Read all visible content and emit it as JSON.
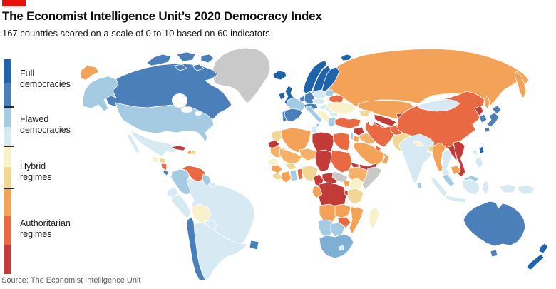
{
  "brand": {
    "accent_color": "#e3120b"
  },
  "header": {
    "title": "The Economist Intelligence Unit’s 2020 Democracy Index",
    "subtitle": "167 countries scored on a scale of 0 to 10 based on 60 indicators"
  },
  "legend": {
    "categories": [
      {
        "label": "Full\ndemocracies"
      },
      {
        "label": "Flawed\ndemocracies"
      },
      {
        "label": "Hybrid\nregimes"
      },
      {
        "label": "Authoritarian\nregimes"
      }
    ]
  },
  "source": "Source: The Economist Intelligence Unit",
  "chart_data": {
    "type": "choropleth",
    "title": "The Economist Intelligence Unit’s 2020 Democracy Index",
    "scale_note": "scored 0 to 10",
    "legend_position": "left",
    "palette": {
      "full_high": "#1f63ab",
      "full_mid": "#4a7fb9",
      "flawed_high": "#a5cbe3",
      "flawed_mid": "#7fb0d4",
      "flawed_low": "#d7e9f3",
      "hybrid_high": "#f8f1ca",
      "hybrid_low": "#f0d795",
      "auth_light": "#f6b168",
      "auth_high": "#f4a257",
      "auth_mid": "#e86942",
      "auth_low": "#c23b38",
      "no_data": "#c9c9c9",
      "sea": "#ffffff"
    },
    "legend_segments": [
      "full_high",
      "full_mid",
      "flawed_high",
      "flawed_low",
      "hybrid_high",
      "hybrid_low",
      "auth_high",
      "auth_mid",
      "auth_low"
    ],
    "regions": [
      {
        "id": "greenland",
        "category": "no_data"
      },
      {
        "id": "canada",
        "category": "full_mid"
      },
      {
        "id": "canada-islands",
        "category": "full_mid"
      },
      {
        "id": "alaska",
        "category": "flawed_high"
      },
      {
        "id": "chukotka",
        "category": "auth_high"
      },
      {
        "id": "usa",
        "category": "flawed_high"
      },
      {
        "id": "mexico",
        "category": "flawed_low"
      },
      {
        "id": "guatemala",
        "category": "hybrid_high"
      },
      {
        "id": "honduras",
        "category": "hybrid_low"
      },
      {
        "id": "nicaragua",
        "category": "auth_mid"
      },
      {
        "id": "costa-rica",
        "category": "full_mid"
      },
      {
        "id": "panama",
        "category": "flawed_low"
      },
      {
        "id": "cuba",
        "category": "auth_low"
      },
      {
        "id": "haiti",
        "category": "auth_high"
      },
      {
        "id": "dominican-republic",
        "category": "hybrid_low"
      },
      {
        "id": "brazil",
        "category": "flawed_low"
      },
      {
        "id": "colombia",
        "category": "flawed_high"
      },
      {
        "id": "venezuela",
        "category": "auth_mid"
      },
      {
        "id": "guyana",
        "category": "flawed_high"
      },
      {
        "id": "suriname",
        "category": "flawed_low"
      },
      {
        "id": "ecuador",
        "category": "flawed_low"
      },
      {
        "id": "peru",
        "category": "flawed_low"
      },
      {
        "id": "bolivia",
        "category": "hybrid_high"
      },
      {
        "id": "paraguay",
        "category": "flawed_low"
      },
      {
        "id": "argentina",
        "category": "flawed_low"
      },
      {
        "id": "chile",
        "category": "full_mid"
      },
      {
        "id": "uruguay",
        "category": "full_mid"
      },
      {
        "id": "russia",
        "category": "auth_high"
      },
      {
        "id": "kamchatka",
        "category": "auth_high"
      },
      {
        "id": "sakhalin",
        "category": "auth_high"
      },
      {
        "id": "norway",
        "category": "full_high"
      },
      {
        "id": "sweden",
        "category": "full_high"
      },
      {
        "id": "finland",
        "category": "full_high"
      },
      {
        "id": "svalbard",
        "category": "full_high"
      },
      {
        "id": "iceland",
        "category": "full_high"
      },
      {
        "id": "denmark",
        "category": "full_high"
      },
      {
        "id": "baltics",
        "category": "flawed_high"
      },
      {
        "id": "ireland",
        "category": "full_high"
      },
      {
        "id": "uk",
        "category": "full_high"
      },
      {
        "id": "benelux",
        "category": "full_mid"
      },
      {
        "id": "germany",
        "category": "full_mid"
      },
      {
        "id": "france",
        "category": "flawed_high"
      },
      {
        "id": "switzerland-austria",
        "category": "full_mid"
      },
      {
        "id": "portugal",
        "category": "full_mid"
      },
      {
        "id": "spain",
        "category": "full_mid"
      },
      {
        "id": "italy",
        "category": "flawed_high"
      },
      {
        "id": "poland",
        "category": "flawed_low"
      },
      {
        "id": "czech-slovakia",
        "category": "flawed_low"
      },
      {
        "id": "hungary",
        "category": "flawed_low"
      },
      {
        "id": "romania",
        "category": "flawed_low"
      },
      {
        "id": "bulgaria",
        "category": "flawed_low"
      },
      {
        "id": "balkans",
        "category": "hybrid_high"
      },
      {
        "id": "greece",
        "category": "flawed_high"
      },
      {
        "id": "belarus",
        "category": "auth_mid"
      },
      {
        "id": "ukraine",
        "category": "hybrid_high"
      },
      {
        "id": "kazakhstan",
        "category": "auth_high"
      },
      {
        "id": "uzbekistan",
        "category": "auth_low"
      },
      {
        "id": "turkmenistan",
        "category": "auth_low"
      },
      {
        "id": "kyrgyzstan-tajikistan",
        "category": "auth_low"
      },
      {
        "id": "caucasus",
        "category": "hybrid_low"
      },
      {
        "id": "turkey",
        "category": "auth_mid"
      },
      {
        "id": "syria",
        "category": "auth_low"
      },
      {
        "id": "iraq",
        "category": "auth_light"
      },
      {
        "id": "israel",
        "category": "flawed_high"
      },
      {
        "id": "jordan",
        "category": "auth_high"
      },
      {
        "id": "saudi-arabia",
        "category": "auth_high"
      },
      {
        "id": "yemen",
        "category": "auth_low"
      },
      {
        "id": "oman",
        "category": "auth_high"
      },
      {
        "id": "gulf-states",
        "category": "auth_mid"
      },
      {
        "id": "iran",
        "category": "auth_mid"
      },
      {
        "id": "afghanistan",
        "category": "auth_mid"
      },
      {
        "id": "pakistan",
        "category": "hybrid_low"
      },
      {
        "id": "china",
        "category": "auth_mid"
      },
      {
        "id": "mongolia",
        "category": "flawed_low"
      },
      {
        "id": "india",
        "category": "flawed_low"
      },
      {
        "id": "nepal",
        "category": "hybrid_high"
      },
      {
        "id": "bangladesh",
        "category": "hybrid_low"
      },
      {
        "id": "sri-lanka",
        "category": "flawed_high"
      },
      {
        "id": "north-korea",
        "category": "auth_low"
      },
      {
        "id": "south-korea",
        "category": "full_mid"
      },
      {
        "id": "japan",
        "category": "full_mid"
      },
      {
        "id": "taiwan",
        "category": "full_high"
      },
      {
        "id": "myanmar",
        "category": "auth_high"
      },
      {
        "id": "thailand",
        "category": "flawed_low"
      },
      {
        "id": "laos",
        "category": "auth_low"
      },
      {
        "id": "vietnam",
        "category": "auth_low"
      },
      {
        "id": "cambodia",
        "category": "auth_high"
      },
      {
        "id": "malaysia",
        "category": "flawed_high"
      },
      {
        "id": "indonesia",
        "category": "flawed_low"
      },
      {
        "id": "philippines",
        "category": "flawed_low"
      },
      {
        "id": "papua-new-guinea",
        "category": "flawed_low"
      },
      {
        "id": "australia",
        "category": "full_mid"
      },
      {
        "id": "tasmania",
        "category": "full_mid"
      },
      {
        "id": "new-zealand",
        "category": "full_high"
      },
      {
        "id": "morocco",
        "category": "hybrid_low"
      },
      {
        "id": "western-sahara",
        "category": "auth_low"
      },
      {
        "id": "algeria",
        "category": "auth_high"
      },
      {
        "id": "tunisia",
        "category": "flawed_low"
      },
      {
        "id": "libya",
        "category": "auth_low"
      },
      {
        "id": "egypt",
        "category": "auth_mid"
      },
      {
        "id": "mauritania",
        "category": "auth_light"
      },
      {
        "id": "mali",
        "category": "auth_light"
      },
      {
        "id": "niger",
        "category": "auth_light"
      },
      {
        "id": "chad",
        "category": "auth_low"
      },
      {
        "id": "sudan",
        "category": "auth_mid"
      },
      {
        "id": "eritrea",
        "category": "auth_low"
      },
      {
        "id": "senegal",
        "category": "hybrid_high"
      },
      {
        "id": "guinea",
        "category": "auth_high"
      },
      {
        "id": "sierra-leone-liberia",
        "category": "hybrid_low"
      },
      {
        "id": "ivory-coast",
        "category": "auth_high"
      },
      {
        "id": "ghana",
        "category": "flawed_high"
      },
      {
        "id": "burkina-faso",
        "category": "hybrid_low"
      },
      {
        "id": "togo-benin",
        "category": "auth_mid"
      },
      {
        "id": "nigeria",
        "category": "hybrid_low"
      },
      {
        "id": "cameroon",
        "category": "auth_low"
      },
      {
        "id": "central-african-republic",
        "category": "auth_low"
      },
      {
        "id": "south-sudan",
        "category": "no_data"
      },
      {
        "id": "ethiopia",
        "category": "auth_light"
      },
      {
        "id": "somalia",
        "category": "no_data"
      },
      {
        "id": "uganda",
        "category": "auth_high"
      },
      {
        "id": "kenya",
        "category": "hybrid_high"
      },
      {
        "id": "drc",
        "category": "auth_low"
      },
      {
        "id": "congo-gabon",
        "category": "auth_high"
      },
      {
        "id": "rwanda-burundi",
        "category": "auth_low"
      },
      {
        "id": "tanzania",
        "category": "hybrid_low"
      },
      {
        "id": "angola",
        "category": "auth_high"
      },
      {
        "id": "zambia",
        "category": "auth_high"
      },
      {
        "id": "malawi",
        "category": "hybrid_low"
      },
      {
        "id": "mozambique",
        "category": "auth_high"
      },
      {
        "id": "zimbabwe",
        "category": "auth_mid"
      },
      {
        "id": "namibia",
        "category": "flawed_high"
      },
      {
        "id": "botswana",
        "category": "flawed_high"
      },
      {
        "id": "south-africa",
        "category": "flawed_mid"
      },
      {
        "id": "lesotho",
        "category": "flawed_low"
      },
      {
        "id": "madagascar",
        "category": "hybrid_high"
      }
    ]
  }
}
